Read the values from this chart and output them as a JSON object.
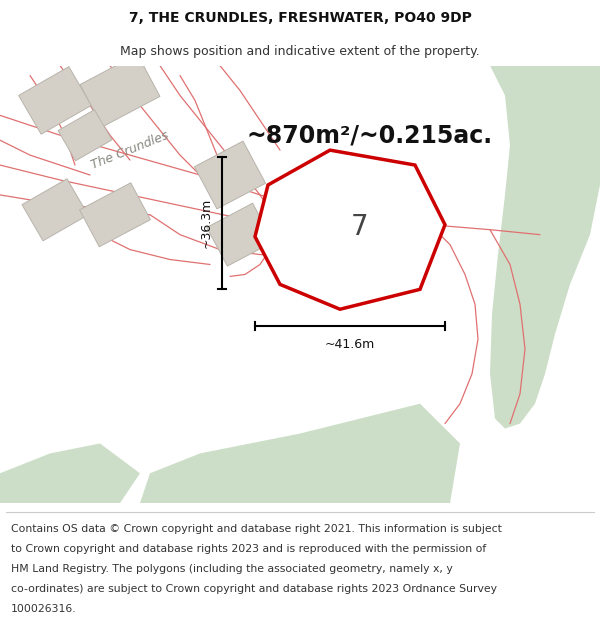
{
  "title_line1": "7, THE CRUNDLES, FRESHWATER, PO40 9DP",
  "title_line2": "Map shows position and indicative extent of the property.",
  "area_text": "~870m²/~0.215ac.",
  "dim_width": "~41.6m",
  "dim_height": "~36.3m",
  "property_number": "7",
  "footer_lines": [
    "Contains OS data © Crown copyright and database right 2021. This information is subject",
    "to Crown copyright and database rights 2023 and is reproduced with the permission of",
    "HM Land Registry. The polygons (including the associated geometry, namely x, y",
    "co-ordinates) are subject to Crown copyright and database rights 2023 Ordnance Survey",
    "100026316."
  ],
  "map_bg": "#f2f0ec",
  "green_color": "#cddec8",
  "building_color": "#d4d0c8",
  "building_edge": "#b8b4ac",
  "property_color": "#cc0000",
  "property_fill": "#ffffff",
  "pink_line_color": "#e07070",
  "road_label_color": "#888880",
  "title_fontsize": 10,
  "subtitle_fontsize": 9,
  "area_fontsize": 17,
  "number_fontsize": 20,
  "dim_fontsize": 9,
  "footer_fontsize": 7.8
}
